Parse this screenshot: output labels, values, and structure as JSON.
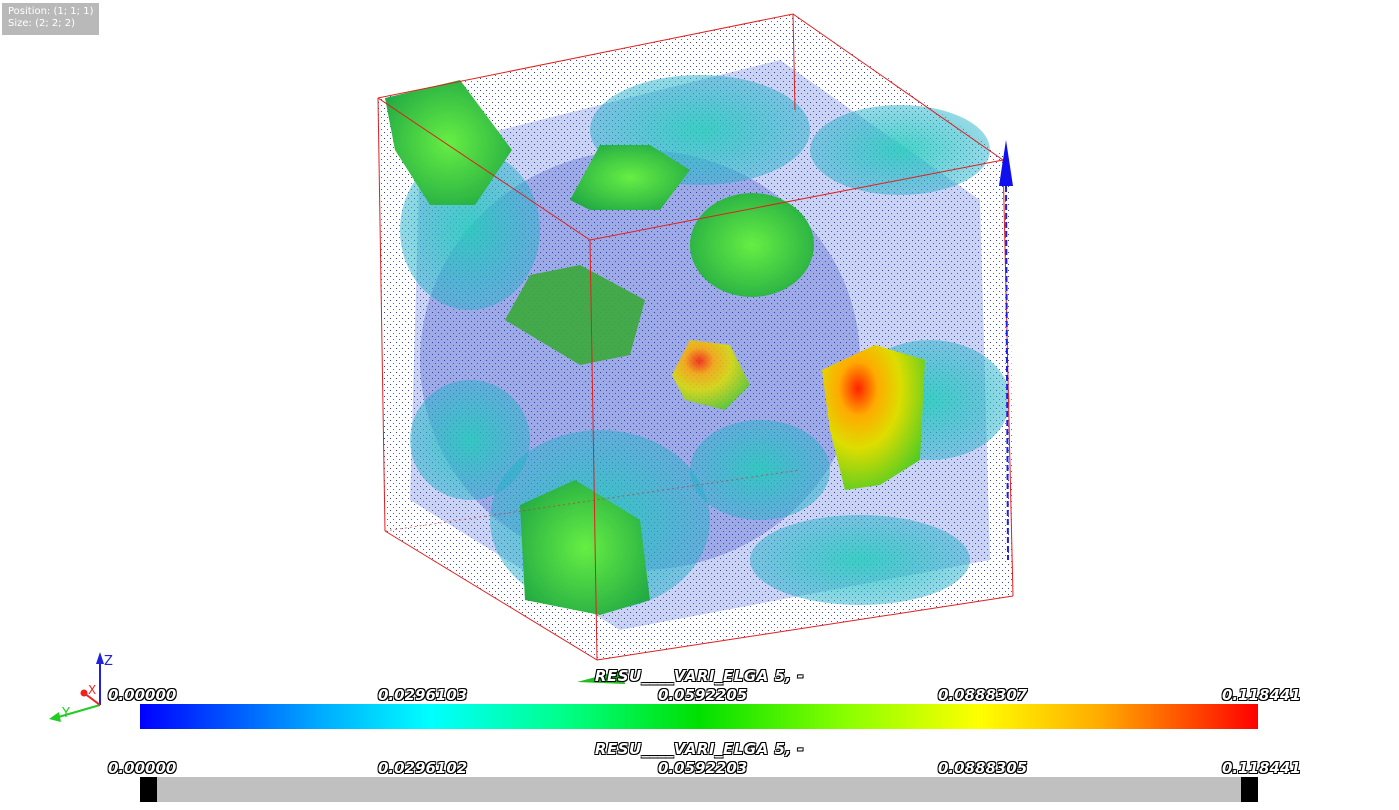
{
  "info": {
    "position": "Position: (1; 1; 1)",
    "size": "Size: (2; 2; 2)"
  },
  "axes": {
    "x": "X",
    "y": "Y",
    "z": "Z"
  },
  "colorbar": {
    "title": "RESU____VARI_ELGA 5, -",
    "ticks": [
      "0.00000",
      "0.0296103",
      "0.0592205",
      "0.0888307",
      "0.118441"
    ]
  },
  "greybar": {
    "title": "RESU____VARI_ELGA 5, -",
    "ticks": [
      "0.00000",
      "0.0296102",
      "0.0592203",
      "0.0888305",
      "0.118441"
    ]
  },
  "colors": {
    "bbox": "#e02020",
    "low": "#0000ff",
    "mid": "#00e000",
    "high": "#ff0000"
  }
}
